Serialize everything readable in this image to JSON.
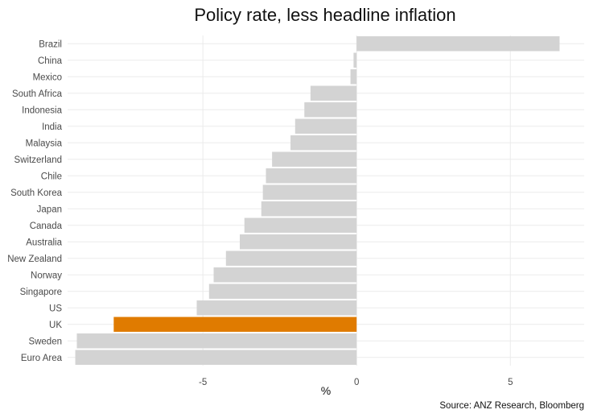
{
  "chart_data": {
    "type": "bar",
    "orientation": "horizontal",
    "title": "Policy rate, less headline inflation",
    "xlabel": "%",
    "ylabel": "",
    "categories": [
      "Brazil",
      "China",
      "Mexico",
      "South Africa",
      "Indonesia",
      "India",
      "Malaysia",
      "Switzerland",
      "Chile",
      "South Korea",
      "Japan",
      "Canada",
      "Australia",
      "New Zealand",
      "Norway",
      "Singapore",
      "US",
      "UK",
      "Sweden",
      "Euro Area"
    ],
    "values": [
      6.6,
      -0.1,
      -0.2,
      -1.5,
      -1.7,
      -2.0,
      -2.15,
      -2.75,
      -2.95,
      -3.05,
      -3.1,
      -3.65,
      -3.8,
      -4.25,
      -4.65,
      -4.8,
      -5.2,
      -7.9,
      -9.1,
      -9.15
    ],
    "highlight": "UK",
    "xlim": [
      -9.4,
      7.4
    ],
    "xticks": [
      -5,
      0,
      5
    ],
    "grid": true,
    "source": "Source: ANZ Research, Bloomberg"
  },
  "colors": {
    "bar": "#d3d3d3",
    "highlight": "#e07b00",
    "grid": "#ebebeb"
  }
}
